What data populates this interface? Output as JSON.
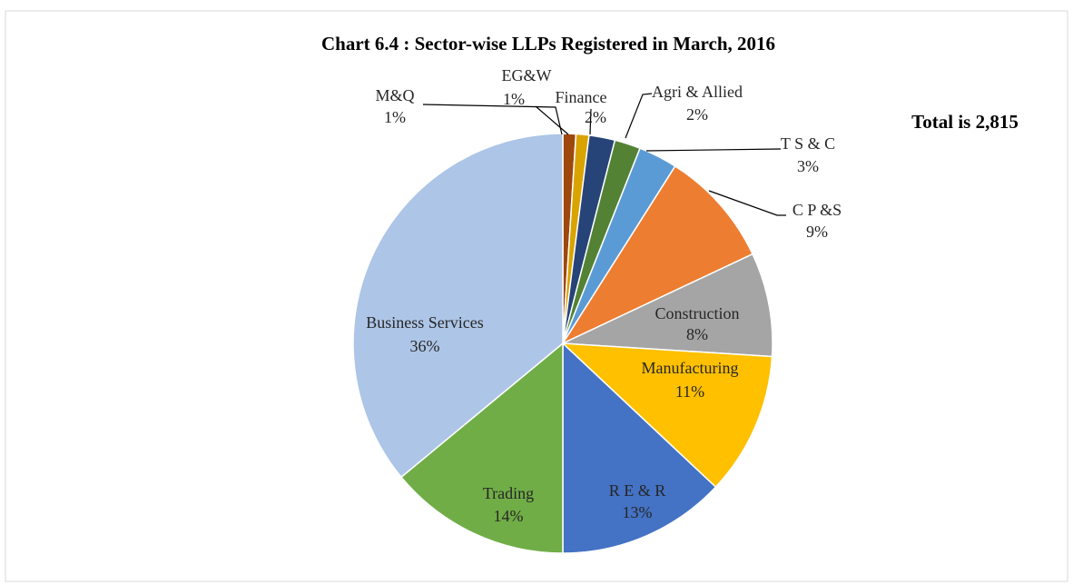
{
  "chart_data": {
    "type": "pie",
    "title": "Chart 6.4 : Sector-wise LLPs Registered in March, 2016",
    "annotation": "Total is 2,815",
    "categories": [
      "M&Q",
      "EG&W",
      "Finance",
      "Agri & Allied",
      "T S  & C",
      "C P &S",
      "Construction",
      "Manufacturing",
      "R E & R",
      "Trading",
      "Business Services"
    ],
    "values": [
      1,
      1,
      2,
      2,
      3,
      9,
      8,
      11,
      13,
      14,
      36
    ],
    "value_labels": [
      "1%",
      "1%",
      "2%",
      "2%",
      "3%",
      "9%",
      "8%",
      "11%",
      "13%",
      "14%",
      "36%"
    ],
    "colors": [
      "#9e480e",
      "#d9a300",
      "#264478",
      "#548235",
      "#5b9bd5",
      "#ed7d31",
      "#a5a5a5",
      "#ffc000",
      "#4472c4",
      "#70ad47",
      "#adc5e7"
    ]
  }
}
